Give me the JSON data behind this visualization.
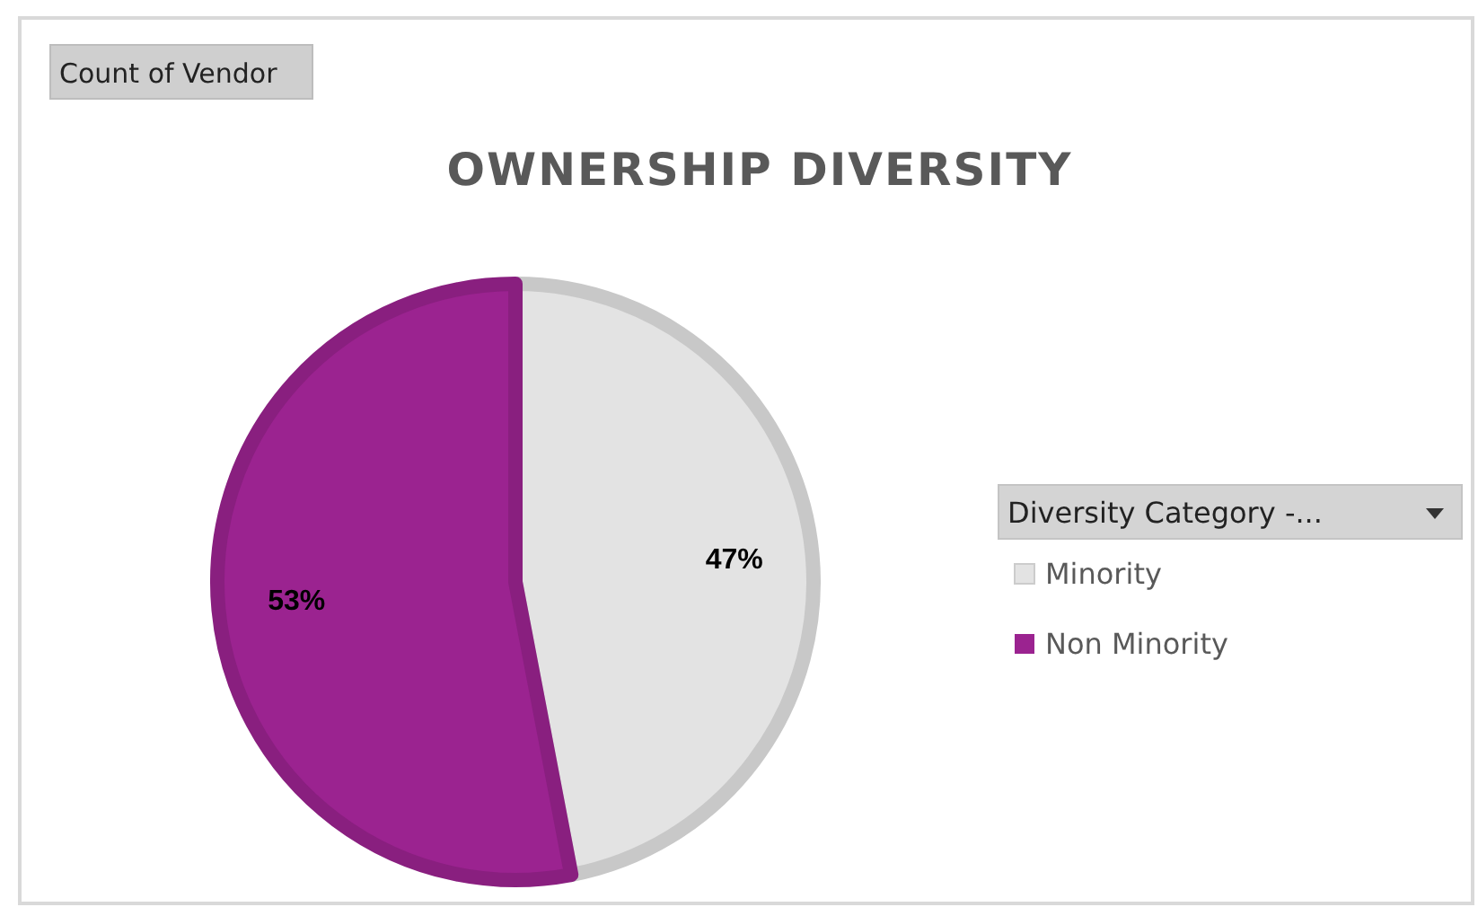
{
  "chart_data": {
    "type": "pie",
    "title": "OWNERSHIP DIVERSITY",
    "categories": [
      "Minority",
      "Non Minority"
    ],
    "values": [
      47,
      53
    ],
    "colors": [
      "#e3e3e3",
      "#9b2390"
    ],
    "value_labels": [
      "47%",
      "53%"
    ],
    "legend": "right",
    "legend_title": "Diversity Category -...",
    "annotations": [
      "Count of Vendor"
    ]
  }
}
